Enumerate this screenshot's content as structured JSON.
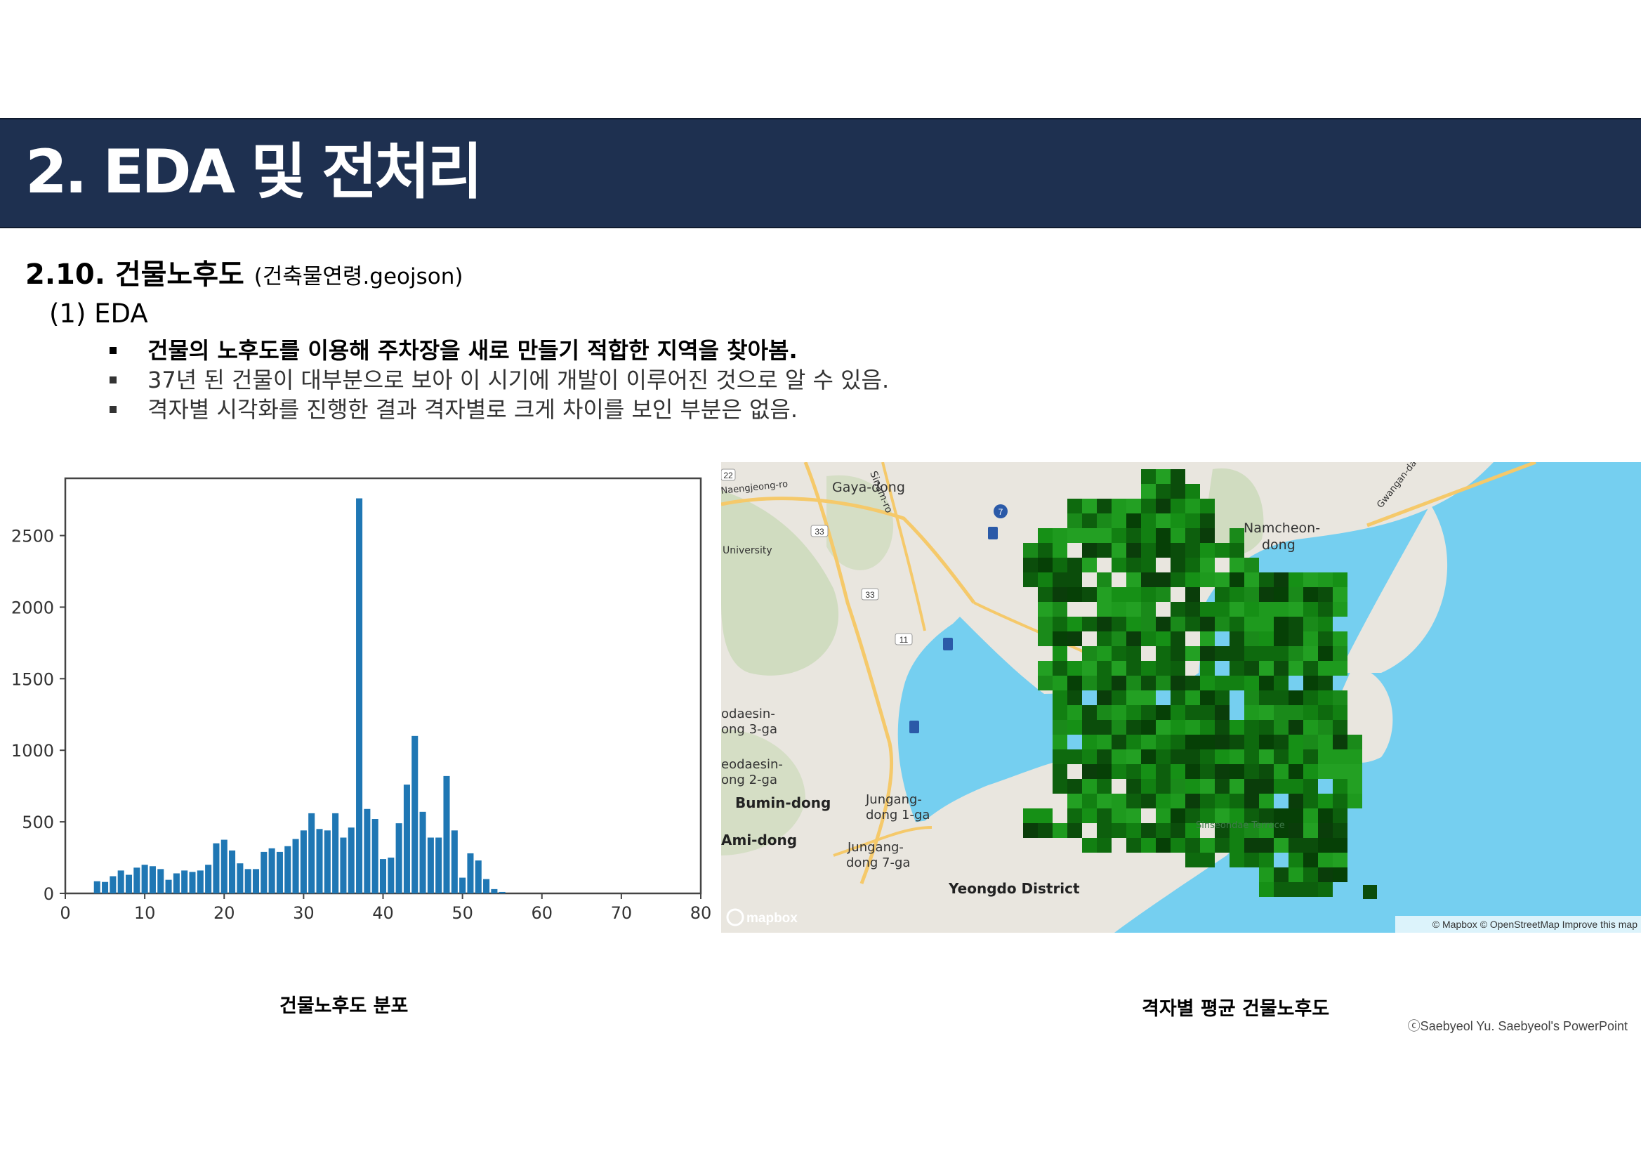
{
  "header": {
    "title": "2. EDA 및 전처리"
  },
  "section": {
    "title": "2.10. 건물노후도",
    "subtitle": "(건축물연령.geojson)"
  },
  "subheading": "(1) EDA",
  "bullets": [
    "건물의 노후도를 이용해 주차장을 새로 만들기 적합한 지역을 찾아봄.",
    "37년 된 건물이 대부분으로 보아 이 시기에 개발이 이루어진 것으로 알 수 있음.",
    "격자별 시각화를 진행한 결과 격자별로 크게 차이를 보인 부분은 없음."
  ],
  "colors": {
    "header_bg": "#1e3050",
    "bar": "#1f77b4",
    "sea": "#75cff0",
    "land": "#e9e6df",
    "grid_green": "#1a8a1a"
  },
  "chart_data": {
    "type": "bar",
    "xlim": [
      0,
      80
    ],
    "ylim": [
      0,
      2900
    ],
    "xticks": [
      0,
      10,
      20,
      30,
      40,
      50,
      60,
      70,
      80
    ],
    "yticks": [
      0,
      500,
      1000,
      1500,
      2000,
      2500
    ],
    "x": [
      4,
      5,
      6,
      7,
      8,
      9,
      10,
      11,
      12,
      13,
      14,
      15,
      16,
      17,
      18,
      19,
      20,
      21,
      22,
      23,
      24,
      25,
      26,
      27,
      28,
      29,
      30,
      31,
      32,
      33,
      34,
      35,
      36,
      37,
      38,
      39,
      40,
      41,
      42,
      43,
      44,
      45,
      46,
      47,
      48,
      49,
      50,
      51,
      52,
      53,
      54,
      55
    ],
    "values": [
      85,
      80,
      120,
      160,
      130,
      180,
      200,
      190,
      170,
      95,
      140,
      160,
      150,
      160,
      200,
      350,
      375,
      300,
      210,
      170,
      170,
      290,
      315,
      290,
      330,
      380,
      440,
      560,
      450,
      440,
      560,
      390,
      460,
      2760,
      590,
      520,
      240,
      250,
      490,
      760,
      1100,
      570,
      390,
      390,
      820,
      440,
      110,
      280,
      230,
      100,
      30,
      10
    ],
    "title": "",
    "xlabel": "",
    "ylabel": ""
  },
  "map": {
    "labels": {
      "gaya": "Gaya-dong",
      "sinam": "Sinam-ro",
      "naengjeong": "Naengjeong-ro",
      "university": "University",
      "namcheon1": "Namcheon-",
      "namcheon2": "dong",
      "gwangan": "Gwangan-daero",
      "bodaesin3a": "odaesin-",
      "bodaesin3b": "ong 3-ga",
      "bodaesin2a": "eodaesin-",
      "bodaesin2b": "ong 2-ga",
      "bumin": "Bumin-dong",
      "ami": "Ami-dong",
      "jungang1a": "Jungang-",
      "jungang1b": "dong 1-ga",
      "jungang7a": "Jungang-",
      "jungang7b": "dong 7-ga",
      "sinseondae": "Sinseondae Terrace",
      "yeongdo": "Yeongdo District",
      "route22": "22",
      "route33a": "33",
      "route33b": "33",
      "route11": "11",
      "route7": "7",
      "logo": "mapbox",
      "attribution": "© Mapbox © OpenStreetMap Improve this map"
    }
  },
  "captions": {
    "left": "건물노후도 분포",
    "right": "격자별 평균 건물노후도"
  },
  "copyright": "ⓒSaebyeol Yu. Saebyeol's PowerPoint"
}
